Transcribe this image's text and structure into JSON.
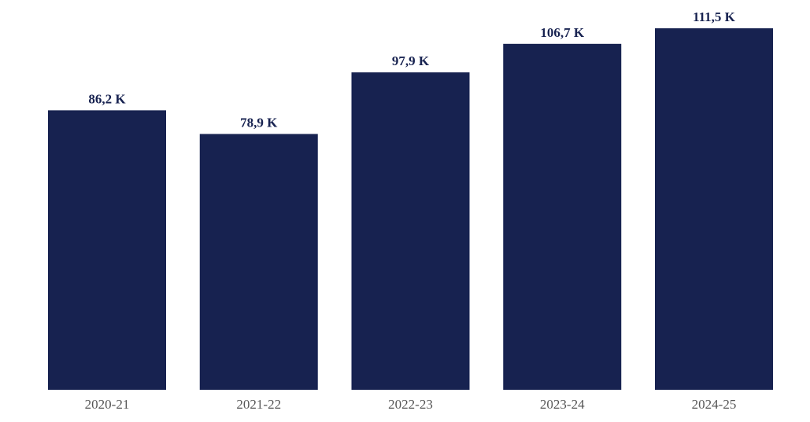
{
  "chart_data": {
    "type": "bar",
    "categories": [
      "2020-21",
      "2021-22",
      "2022-23",
      "2023-24",
      "2024-25"
    ],
    "values": [
      86200,
      78900,
      97900,
      106700,
      111500
    ],
    "data_labels": [
      "86,2 K",
      "78,9 K",
      "97,9 K",
      "106,7 K",
      "111,5 K"
    ],
    "ylim": [
      0,
      111500
    ],
    "grid": false,
    "legend": "none",
    "bar_color": "#172250",
    "label_color": "#172250",
    "tick_color": "#555555"
  }
}
